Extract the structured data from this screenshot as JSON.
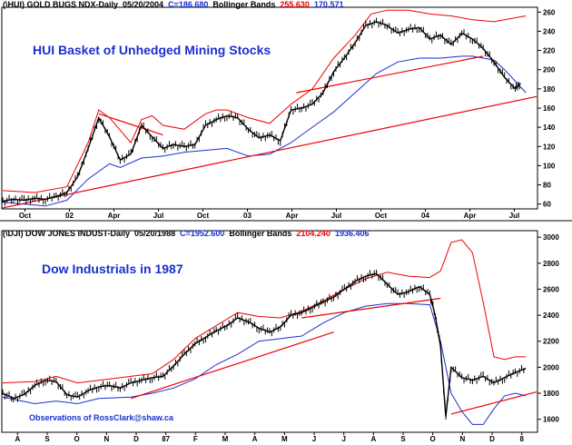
{
  "chart_data": [
    {
      "type": "line",
      "header": {
        "symbol": "(\\HUI) GOLD BUGS NDX-Daily",
        "date": "05/20/2004",
        "close": "C=186.680",
        "indicator": "Bollinger Bands",
        "upper": "255.630",
        "lower": "170.571"
      },
      "title": "HUI Basket of Unhedged Mining Stocks",
      "ylim": [
        55,
        265
      ],
      "yticks": [
        "260",
        "240",
        "220",
        "200",
        "180",
        "160",
        "140",
        "120",
        "100",
        "80",
        "60"
      ],
      "xticks": [
        "Oct",
        "02",
        "Apr",
        "Jul",
        "Oct",
        "03",
        "Apr",
        "Jul",
        "Oct",
        "04",
        "Apr",
        "Jul"
      ],
      "colors": {
        "price": "#000000",
        "upper_band": "#ee0000",
        "lower_band": "#1a2fd0",
        "trendline": "#ee0000"
      },
      "series": [
        {
          "x": [
            0,
            2,
            4,
            6,
            8,
            10,
            12,
            14,
            16,
            18,
            20,
            22,
            24,
            26,
            28,
            30,
            32,
            34
          ],
          "values": [
            63,
            65,
            64,
            66,
            65,
            68,
            72,
            88,
            118,
            150,
            130,
            106,
            112,
            142,
            130,
            118,
            122,
            120
          ]
        },
        {
          "x": [
            34,
            36,
            38,
            40,
            42,
            44,
            46,
            48,
            50,
            52,
            54,
            56,
            58,
            60,
            62,
            64,
            66,
            68,
            70
          ],
          "values": [
            120,
            122,
            142,
            148,
            152,
            150,
            138,
            129,
            132,
            126,
            158,
            160,
            164,
            176,
            198,
            212,
            228,
            246,
            250
          ]
        },
        {
          "x": [
            70,
            72,
            74,
            76,
            78,
            80,
            82,
            84,
            86,
            88,
            90,
            92,
            94,
            96,
            97
          ],
          "values": [
            250,
            246,
            238,
            242,
            244,
            232,
            236,
            226,
            238,
            232,
            222,
            208,
            192,
            180,
            186
          ]
        }
      ],
      "upper_band": [
        [
          0,
          74
        ],
        [
          6,
          72
        ],
        [
          12,
          78
        ],
        [
          16,
          124
        ],
        [
          18,
          158
        ],
        [
          20,
          150
        ],
        [
          24,
          124
        ],
        [
          26,
          148
        ],
        [
          28,
          152
        ],
        [
          30,
          142
        ],
        [
          34,
          138
        ],
        [
          38,
          154
        ],
        [
          40,
          158
        ],
        [
          42,
          158
        ],
        [
          46,
          150
        ],
        [
          50,
          144
        ],
        [
          54,
          164
        ],
        [
          58,
          180
        ],
        [
          62,
          212
        ],
        [
          66,
          236
        ],
        [
          69,
          258
        ],
        [
          72,
          262
        ],
        [
          76,
          262
        ],
        [
          80,
          258
        ],
        [
          84,
          256
        ],
        [
          88,
          252
        ],
        [
          92,
          250
        ],
        [
          96,
          254
        ],
        [
          98,
          256
        ]
      ],
      "lower_band": [
        [
          0,
          62
        ],
        [
          4,
          60
        ],
        [
          8,
          58
        ],
        [
          12,
          64
        ],
        [
          16,
          86
        ],
        [
          20,
          102
        ],
        [
          22,
          98
        ],
        [
          26,
          108
        ],
        [
          30,
          110
        ],
        [
          34,
          114
        ],
        [
          38,
          116
        ],
        [
          42,
          118
        ],
        [
          46,
          110
        ],
        [
          50,
          112
        ],
        [
          54,
          124
        ],
        [
          58,
          140
        ],
        [
          62,
          156
        ],
        [
          66,
          176
        ],
        [
          70,
          196
        ],
        [
          74,
          208
        ],
        [
          78,
          212
        ],
        [
          82,
          212
        ],
        [
          86,
          214
        ],
        [
          88,
          214
        ],
        [
          90,
          212
        ],
        [
          92,
          210
        ],
        [
          94,
          200
        ],
        [
          96,
          188
        ],
        [
          98,
          176
        ]
      ],
      "trendlines": [
        [
          [
            0,
            56
          ],
          [
            100,
            172
          ]
        ],
        [
          [
            18,
            154
          ],
          [
            30,
            132
          ]
        ],
        [
          [
            55,
            176
          ],
          [
            90,
            214
          ]
        ]
      ]
    },
    {
      "type": "line",
      "header": {
        "symbol": "(\\DJI) DOW JONES INDUST-Daily",
        "date": "05/20/1988",
        "close": "C=1952.600",
        "indicator": "Bollinger Bands",
        "upper": "2104.240",
        "lower": "1936.406"
      },
      "title": "Dow Industrials in 1987",
      "ylim": [
        1500,
        3050
      ],
      "yticks": [
        "3000",
        "2800",
        "2600",
        "2400",
        "2200",
        "2000",
        "1800",
        "1600"
      ],
      "xticks": [
        "A",
        "S",
        "O",
        "N",
        "D",
        "87",
        "F",
        "M",
        "A",
        "M",
        "J",
        "J",
        "A",
        "S",
        "O",
        "N",
        "D",
        "8"
      ],
      "colors": {
        "price": "#000000",
        "upper_band": "#ee0000",
        "lower_band": "#1a2fd0",
        "trendline": "#ee0000"
      },
      "series": [
        {
          "x": [
            0,
            2,
            4,
            6,
            8,
            10,
            12,
            14,
            16,
            18,
            20,
            22,
            24,
            26,
            28,
            30
          ],
          "values": [
            1800,
            1760,
            1790,
            1860,
            1900,
            1890,
            1790,
            1770,
            1820,
            1850,
            1860,
            1840,
            1880,
            1900,
            1920,
            1930
          ]
        },
        {
          "x": [
            30,
            32,
            34,
            36,
            38,
            40,
            42,
            44,
            46,
            48,
            50,
            52,
            54,
            56,
            58,
            60,
            62,
            64,
            66,
            68,
            70,
            72,
            74,
            76,
            78,
            80
          ],
          "values": [
            1930,
            2010,
            2100,
            2180,
            2230,
            2280,
            2320,
            2380,
            2350,
            2300,
            2270,
            2310,
            2400,
            2420,
            2460,
            2500,
            2540,
            2600,
            2660,
            2700,
            2720,
            2640,
            2560,
            2580,
            2620,
            2560
          ]
        },
        {
          "x": [
            80,
            81,
            82,
            83,
            84,
            86,
            88,
            90,
            92,
            94,
            96,
            98
          ],
          "values": [
            2560,
            2400,
            2160,
            1620,
            2000,
            1920,
            1900,
            1930,
            1880,
            1920,
            1960,
            1990
          ]
        }
      ],
      "upper_band": [
        [
          0,
          1880
        ],
        [
          6,
          1890
        ],
        [
          10,
          1930
        ],
        [
          14,
          1880
        ],
        [
          18,
          1900
        ],
        [
          24,
          1930
        ],
        [
          28,
          1950
        ],
        [
          32,
          2060
        ],
        [
          36,
          2220
        ],
        [
          40,
          2320
        ],
        [
          44,
          2420
        ],
        [
          48,
          2390
        ],
        [
          52,
          2380
        ],
        [
          56,
          2430
        ],
        [
          60,
          2510
        ],
        [
          64,
          2600
        ],
        [
          68,
          2680
        ],
        [
          72,
          2730
        ],
        [
          76,
          2700
        ],
        [
          80,
          2690
        ],
        [
          82,
          2740
        ],
        [
          84,
          2960
        ],
        [
          86,
          2980
        ],
        [
          88,
          2880
        ],
        [
          90,
          2500
        ],
        [
          92,
          2080
        ],
        [
          94,
          2060
        ],
        [
          96,
          2080
        ],
        [
          98,
          2080
        ]
      ],
      "lower_band": [
        [
          0,
          1770
        ],
        [
          6,
          1720
        ],
        [
          10,
          1740
        ],
        [
          14,
          1720
        ],
        [
          18,
          1760
        ],
        [
          24,
          1770
        ],
        [
          28,
          1800
        ],
        [
          32,
          1840
        ],
        [
          36,
          1910
        ],
        [
          40,
          2020
        ],
        [
          44,
          2100
        ],
        [
          48,
          2200
        ],
        [
          52,
          2220
        ],
        [
          56,
          2240
        ],
        [
          60,
          2340
        ],
        [
          64,
          2420
        ],
        [
          68,
          2470
        ],
        [
          72,
          2490
        ],
        [
          76,
          2490
        ],
        [
          80,
          2480
        ],
        [
          82,
          2200
        ],
        [
          84,
          1800
        ],
        [
          86,
          1660
        ],
        [
          88,
          1560
        ],
        [
          90,
          1560
        ],
        [
          92,
          1680
        ],
        [
          94,
          1780
        ],
        [
          96,
          1800
        ],
        [
          98,
          1780
        ]
      ],
      "trendlines": [
        [
          [
            24,
            1760
          ],
          [
            62,
            2270
          ]
        ],
        [
          [
            56,
            2380
          ],
          [
            82,
            2530
          ]
        ],
        [
          [
            84,
            1640
          ],
          [
            100,
            1810
          ]
        ]
      ],
      "footnote": "Observations of RossClark@shaw.ca"
    }
  ]
}
